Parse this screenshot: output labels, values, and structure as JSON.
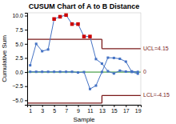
{
  "chart_data": {
    "type": "line",
    "title": "CUSUM Chart of A to B Distance",
    "x_label": "Sample",
    "y_label": "Cumulative Sum",
    "x": [
      1,
      2,
      3,
      4,
      5,
      6,
      7,
      8,
      9,
      10,
      11,
      12,
      13,
      14,
      15,
      16,
      17,
      18,
      19
    ],
    "series": [
      {
        "values": [
          1.2,
          5.0,
          3.7,
          4.0,
          9.4,
          9.8,
          10.1,
          8.5,
          8.5,
          6.3,
          6.3,
          2.3,
          1.5,
          0.15,
          -0.25,
          0.25,
          0.08,
          0.12,
          0.03
        ],
        "color": "#4472c4",
        "marker": "square"
      },
      {
        "values": [
          0.05,
          0.05,
          0.05,
          0.05,
          0.05,
          0.05,
          0.05,
          0.05,
          -0.08,
          0.0,
          -3.0,
          -2.4,
          0.02,
          2.55,
          2.5,
          2.35,
          1.85,
          0.02,
          -0.28
        ],
        "color": "#4472c4",
        "marker": "square"
      },
      {
        "type": "scatter",
        "x": [
          5,
          6,
          7,
          8,
          9,
          10,
          11
        ],
        "values": [
          9.4,
          9.8,
          10.1,
          8.5,
          8.5,
          6.3,
          6.3
        ],
        "color": "#cc0000",
        "marker": "square"
      }
    ],
    "reference_lines": [
      {
        "value": 0,
        "color": "#228b22"
      }
    ],
    "control_limits": {
      "step_x": 13,
      "ucl_initial": 5.8,
      "ucl": 4.15,
      "lcl_initial": -5.5,
      "lcl": -4.15,
      "color": "#7b1a1a"
    },
    "annotations": [
      {
        "text": "UCL=4.15",
        "y": 4.15,
        "color": "#7b1a1a"
      },
      {
        "text": "0",
        "y": 0,
        "color": "#7b1a1a"
      },
      {
        "text": "LCL=-4.15",
        "y": -4.15,
        "color": "#7b1a1a"
      }
    ],
    "xlim": [
      0.5,
      19.5
    ],
    "ylim": [
      -5.8,
      10.5
    ],
    "xticks": [
      1,
      3,
      5,
      7,
      9,
      11,
      13,
      15,
      17,
      19
    ],
    "yticks": [
      {
        "value": -5.0,
        "label": "−5.0"
      },
      {
        "value": -2.5,
        "label": "−2.5"
      },
      {
        "value": 0.0,
        "label": "0.0"
      },
      2.5,
      {
        "value": 5.0,
        "label": "5.0"
      },
      7.5,
      {
        "value": 10.0,
        "label": "10.0"
      }
    ],
    "grid": false
  }
}
